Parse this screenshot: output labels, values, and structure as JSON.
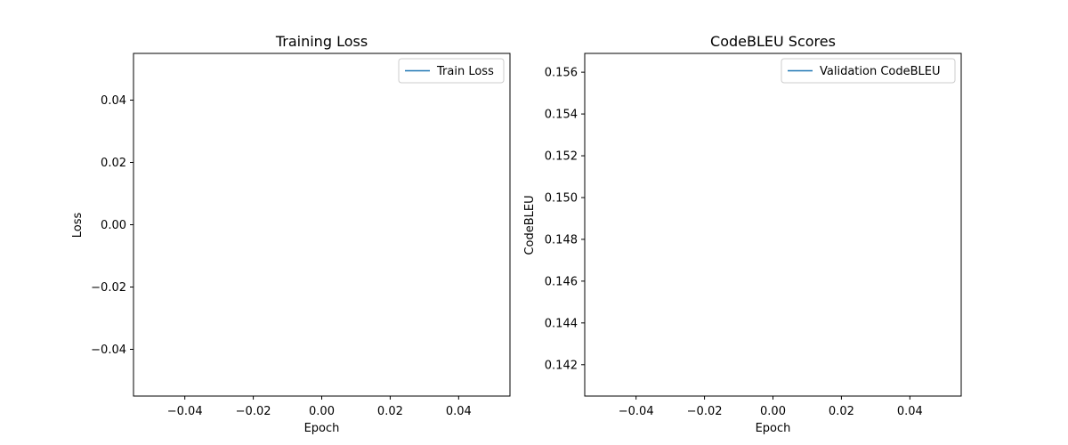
{
  "chart_data": [
    {
      "type": "line",
      "title": "Training Loss",
      "xlabel": "Epoch",
      "ylabel": "Loss",
      "xlim": [
        -0.055,
        0.055
      ],
      "ylim": [
        -0.055,
        0.055
      ],
      "xticks": [
        -0.04,
        -0.02,
        0.0,
        0.02,
        0.04
      ],
      "xtick_labels": [
        "−0.04",
        "−0.02",
        "0.00",
        "0.02",
        "0.04"
      ],
      "yticks": [
        -0.04,
        -0.02,
        0.0,
        0.02,
        0.04
      ],
      "ytick_labels": [
        "−0.04",
        "−0.02",
        "0.00",
        "0.02",
        "0.04"
      ],
      "grid": false,
      "legend_position": "top-right",
      "series": [
        {
          "name": "Train Loss",
          "color": "#1f77b4",
          "x": [],
          "y": []
        }
      ]
    },
    {
      "type": "line",
      "title": "CodeBLEU Scores",
      "xlabel": "Epoch",
      "ylabel": "CodeBLEU",
      "xlim": [
        -0.055,
        0.055
      ],
      "ylim": [
        0.1405,
        0.1569
      ],
      "xticks": [
        -0.04,
        -0.02,
        0.0,
        0.02,
        0.04
      ],
      "xtick_labels": [
        "−0.04",
        "−0.02",
        "0.00",
        "0.02",
        "0.04"
      ],
      "yticks": [
        0.142,
        0.144,
        0.146,
        0.148,
        0.15,
        0.152,
        0.154,
        0.156
      ],
      "ytick_labels": [
        "0.142",
        "0.144",
        "0.146",
        "0.148",
        "0.150",
        "0.152",
        "0.154",
        "0.156"
      ],
      "grid": false,
      "legend_position": "top-right",
      "series": [
        {
          "name": "Validation CodeBLEU",
          "color": "#1f77b4",
          "x": [],
          "y": []
        }
      ]
    }
  ]
}
